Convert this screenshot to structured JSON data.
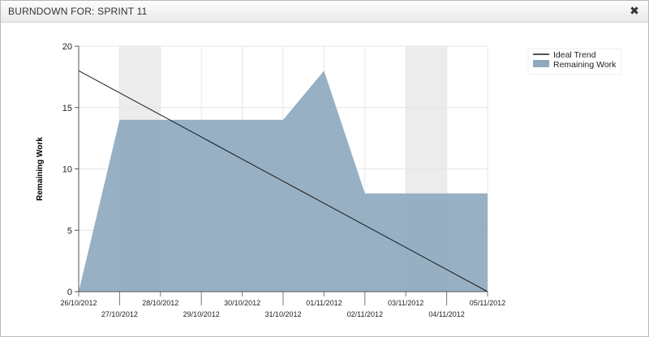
{
  "window": {
    "title": "BURNDOWN FOR: SPRINT 11",
    "close_icon": "close-icon"
  },
  "chart_data": {
    "type": "area",
    "title": "",
    "xlabel": "",
    "ylabel": "Remaining Work",
    "ylim": [
      0,
      20
    ],
    "yticks": [
      0,
      5,
      10,
      15,
      20
    ],
    "grid": true,
    "legend_position": "top-right",
    "categories": [
      "26/10/2012",
      "27/10/2012",
      "28/10/2012",
      "29/10/2012",
      "30/10/2012",
      "31/10/2012",
      "01/11/2012",
      "02/11/2012",
      "03/11/2012",
      "04/11/2012",
      "05/11/2012"
    ],
    "weekend_bands": [
      [
        "27/10/2012",
        "28/10/2012"
      ],
      [
        "03/11/2012",
        "04/11/2012"
      ]
    ],
    "series": [
      {
        "name": "Ideal Trend",
        "kind": "line",
        "color": "#1a1a1a",
        "values": [
          18,
          16.2,
          14.4,
          12.6,
          10.8,
          9,
          7.2,
          5.4,
          3.6,
          1.8,
          0
        ]
      },
      {
        "name": "Remaining Work",
        "kind": "area",
        "color": "#8ea9bf",
        "values": [
          0,
          14,
          14,
          14,
          14,
          14,
          18,
          8,
          8,
          8,
          8
        ]
      }
    ]
  }
}
